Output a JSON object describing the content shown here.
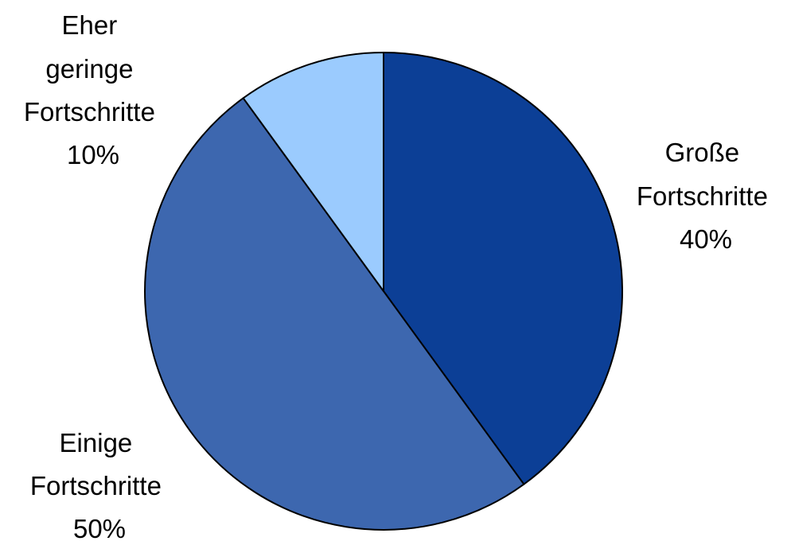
{
  "chart_data": {
    "type": "pie",
    "start_angle_deg": 0,
    "direction": "clockwise",
    "slices": [
      {
        "name": "Große Fortschritte",
        "label_lines": [
          "Große",
          "Fortschritte",
          "40%"
        ],
        "value": 40,
        "color": "#0C3F96"
      },
      {
        "name": "Einige Fortschritte",
        "label_lines": [
          "Einige",
          "Fortschritte",
          "50%"
        ],
        "value": 50,
        "color": "#3D67AF"
      },
      {
        "name": "Eher geringe Fortschritte",
        "label_lines": [
          "Eher",
          "geringe",
          "Fortschritte",
          "10%"
        ],
        "value": 10,
        "color": "#9BCBFE"
      }
    ],
    "outline_color": "#000000"
  }
}
